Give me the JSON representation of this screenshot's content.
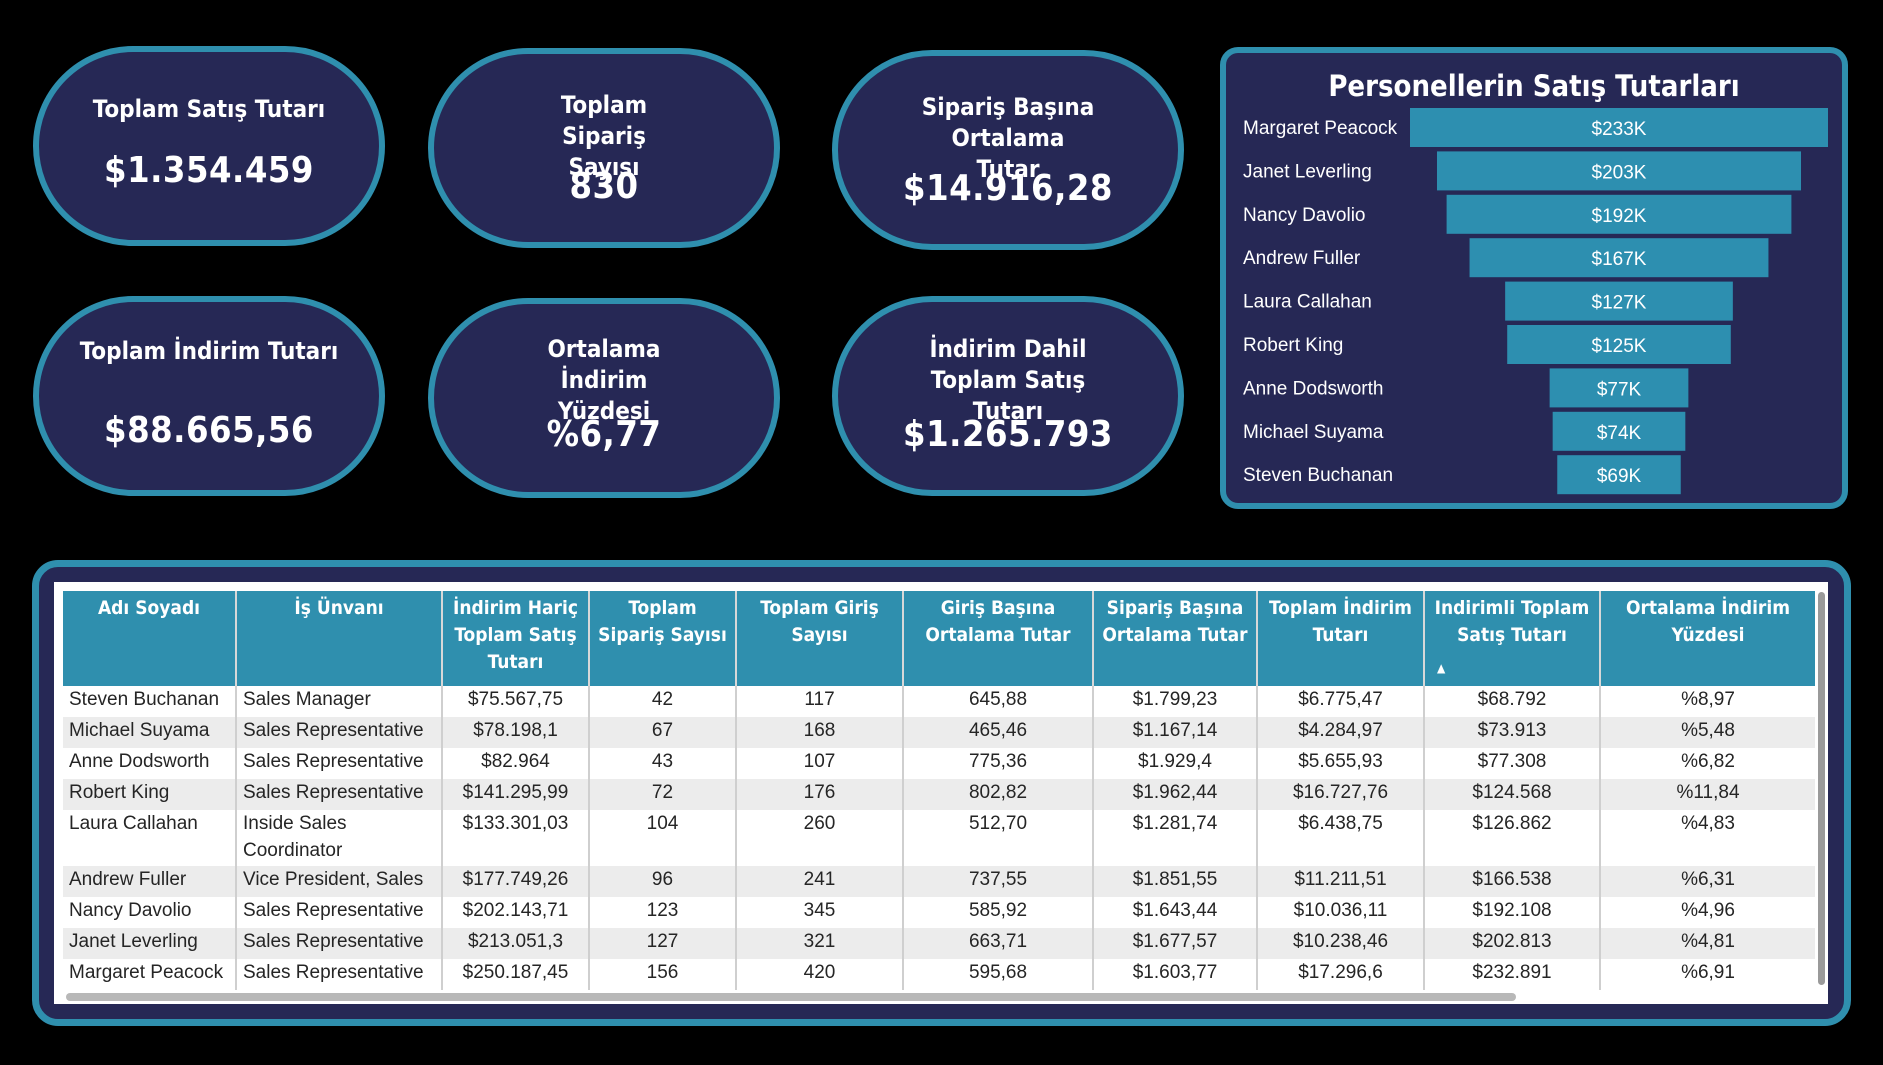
{
  "kpis": {
    "total_sales": {
      "label": "Toplam Satış Tutarı",
      "value": "$1.354.459"
    },
    "total_orders": {
      "label": "Toplam Sipariş Sayısı",
      "value": "830"
    },
    "avg_per_order": {
      "label": "Sipariş Başına Ortalama Tutar",
      "value": "$14.916,28"
    },
    "total_discount": {
      "label": "Toplam İndirim Tutarı",
      "value": "$88.665,56"
    },
    "avg_discount_pct": {
      "label": "Ortalama İndirim Yüzdesi",
      "value": "%6,77"
    },
    "net_sales": {
      "label": "İndirim Dahil Toplam Satış Tutarı",
      "value": "$1.265.793"
    }
  },
  "colors": {
    "panel": "#262855",
    "accent": "#2f8fae",
    "bar": "#2d8fb0",
    "background": "#000000"
  },
  "chart_data": {
    "type": "bar",
    "orientation": "horizontal-funnel",
    "title": "Personellerin Satış Tutarları",
    "categories": [
      "Margaret Peacock",
      "Janet Leverling",
      "Nancy Davolio",
      "Andrew Fuller",
      "Laura Callahan",
      "Robert King",
      "Anne Dodsworth",
      "Michael Suyama",
      "Steven Buchanan"
    ],
    "values": [
      232891,
      202813,
      192108,
      166538,
      126862,
      124568,
      77308,
      73913,
      68792
    ],
    "data_labels": [
      "$233K",
      "$203K",
      "$192K",
      "$167K",
      "$127K",
      "$125K",
      "$77K",
      "$74K",
      "$69K"
    ],
    "xlabel": "",
    "ylabel": ""
  },
  "table": {
    "headers": [
      "Adı Soyadı",
      "İş Ünvanı",
      "İndirim Hariç Toplam Satış Tutarı",
      "Toplam Sipariş Sayısı",
      "Toplam Giriş Sayısı",
      "Giriş Başına Ortalama Tutar",
      "Sipariş Başına Ortalama Tutar",
      "Toplam İndirim Tutarı",
      "Indirimli Toplam Satış Tutarı",
      "Ortalama İndirim Yüzdesi"
    ],
    "sort_indicator": "▲",
    "rows": [
      [
        "Steven Buchanan",
        "Sales Manager",
        "$75.567,75",
        "42",
        "117",
        "645,88",
        "$1.799,23",
        "$6.775,47",
        "$68.792",
        "%8,97"
      ],
      [
        "Michael Suyama",
        "Sales Representative",
        "$78.198,1",
        "67",
        "168",
        "465,46",
        "$1.167,14",
        "$4.284,97",
        "$73.913",
        "%5,48"
      ],
      [
        "Anne Dodsworth",
        "Sales Representative",
        "$82.964",
        "43",
        "107",
        "775,36",
        "$1.929,4",
        "$5.655,93",
        "$77.308",
        "%6,82"
      ],
      [
        "Robert King",
        "Sales Representative",
        "$141.295,99",
        "72",
        "176",
        "802,82",
        "$1.962,44",
        "$16.727,76",
        "$124.568",
        "%11,84"
      ],
      [
        "Laura Callahan",
        "Inside Sales Coordinator",
        "$133.301,03",
        "104",
        "260",
        "512,70",
        "$1.281,74",
        "$6.438,75",
        "$126.862",
        "%4,83"
      ],
      [
        "Andrew Fuller",
        "Vice President, Sales",
        "$177.749,26",
        "96",
        "241",
        "737,55",
        "$1.851,55",
        "$11.211,51",
        "$166.538",
        "%6,31"
      ],
      [
        "Nancy Davolio",
        "Sales Representative",
        "$202.143,71",
        "123",
        "345",
        "585,92",
        "$1.643,44",
        "$10.036,11",
        "$192.108",
        "%4,96"
      ],
      [
        "Janet Leverling",
        "Sales Representative",
        "$213.051,3",
        "127",
        "321",
        "663,71",
        "$1.677,57",
        "$10.238,46",
        "$202.813",
        "%4,81"
      ],
      [
        "Margaret Peacock",
        "Sales Representative",
        "$250.187,45",
        "156",
        "420",
        "595,68",
        "$1.603,77",
        "$17.296,6",
        "$232.891",
        "%6,91"
      ]
    ]
  }
}
